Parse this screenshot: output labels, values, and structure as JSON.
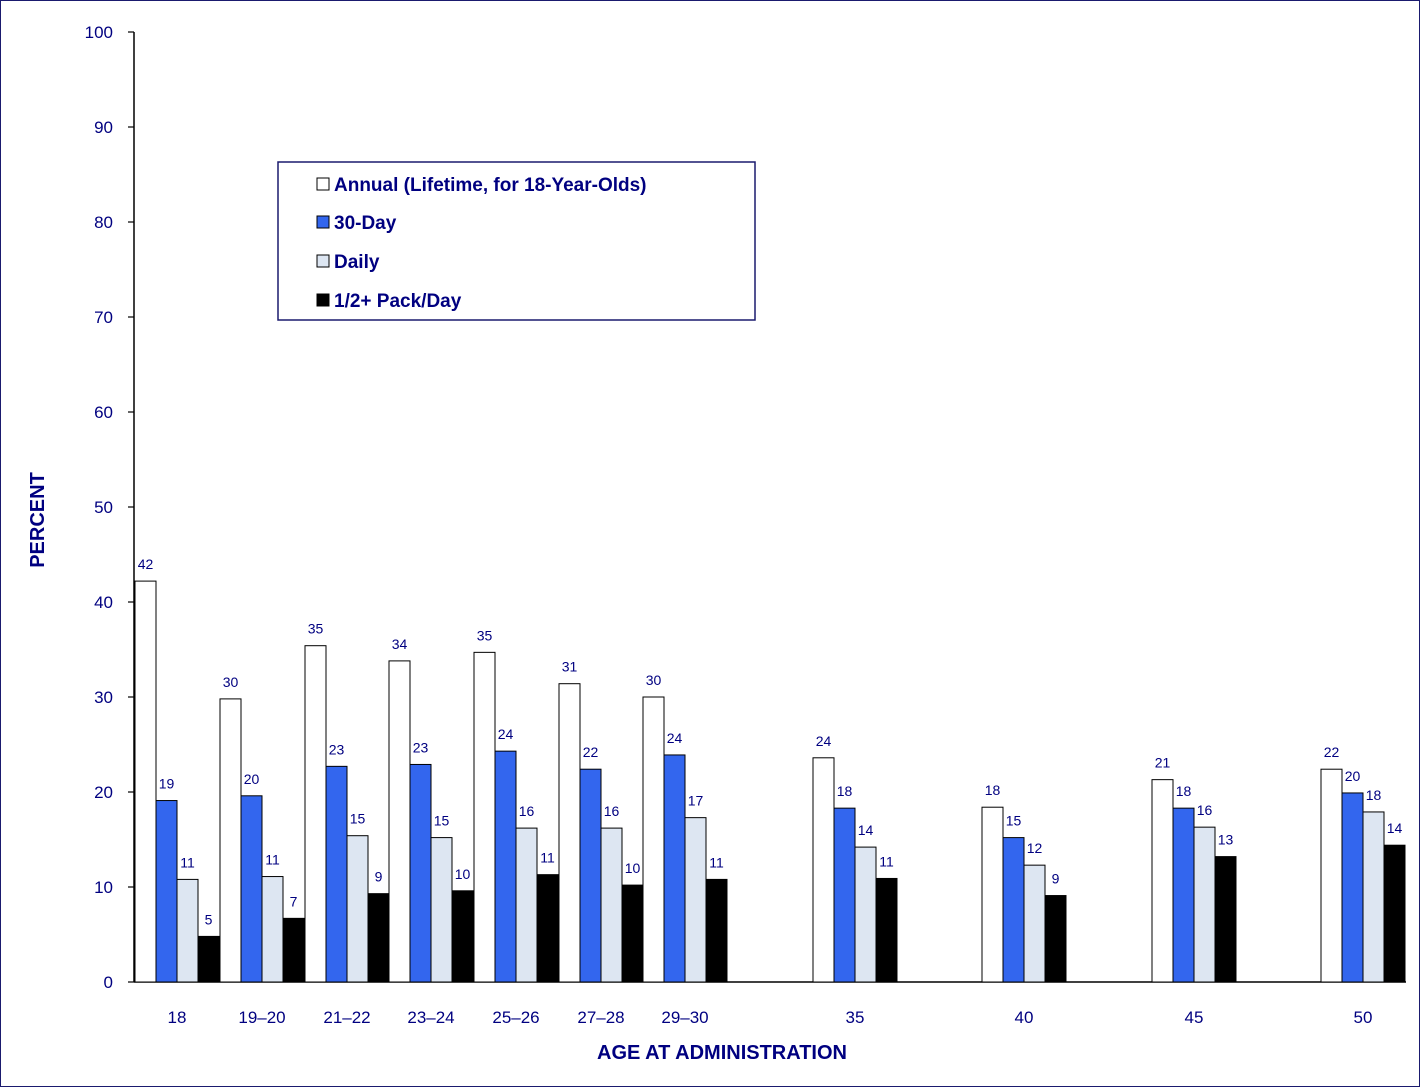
{
  "chart_data": {
    "type": "bar",
    "xlabel": "AGE AT ADMINISTRATION",
    "ylabel": "PERCENT",
    "ylim": [
      0,
      100
    ],
    "yticks": [
      0,
      10,
      20,
      30,
      40,
      50,
      60,
      70,
      80,
      90,
      100
    ],
    "categories": [
      "18",
      "19–20",
      "21–22",
      "23–24",
      "25–26",
      "27–28",
      "29–30",
      "35",
      "40",
      "45",
      "50"
    ],
    "series": [
      {
        "name": "Annual (Lifetime, for 18-Year-Olds)",
        "color": "#ffffff",
        "values": [
          42.2,
          29.8,
          35.4,
          33.8,
          34.7,
          31.4,
          30.0,
          23.6,
          18.4,
          21.3,
          22.4
        ],
        "labels": [
          "42",
          "30",
          "35",
          "34",
          "35",
          "31",
          "30",
          "24",
          "18",
          "21",
          "22"
        ]
      },
      {
        "name": "30-Day",
        "color": "#3366ee",
        "values": [
          19.1,
          19.6,
          22.7,
          22.9,
          24.3,
          22.4,
          23.9,
          18.3,
          15.2,
          18.3,
          19.9
        ],
        "labels": [
          "19",
          "20",
          "23",
          "23",
          "24",
          "22",
          "24",
          "18",
          "15",
          "18",
          "20"
        ]
      },
      {
        "name": "Daily",
        "color": "#dde6f2",
        "values": [
          10.8,
          11.1,
          15.4,
          15.2,
          16.2,
          16.2,
          17.3,
          14.2,
          12.3,
          16.3,
          17.9
        ],
        "labels": [
          "11",
          "11",
          "15",
          "15",
          "16",
          "16",
          "17",
          "14",
          "12",
          "16",
          "18"
        ]
      },
      {
        "name": "1/2+ Pack/Day",
        "color": "#000000",
        "values": [
          4.8,
          6.7,
          9.3,
          9.6,
          11.3,
          10.2,
          10.8,
          10.9,
          9.1,
          13.2,
          14.4
        ],
        "labels": [
          "5",
          "7",
          "9",
          "10",
          "11",
          "10",
          "11",
          "11",
          "9",
          "13",
          "14"
        ]
      }
    ],
    "grid": false,
    "legend_position": "upper-left inside plot"
  },
  "colors": {
    "text": "#000080",
    "frame": "#1a1a6e"
  }
}
